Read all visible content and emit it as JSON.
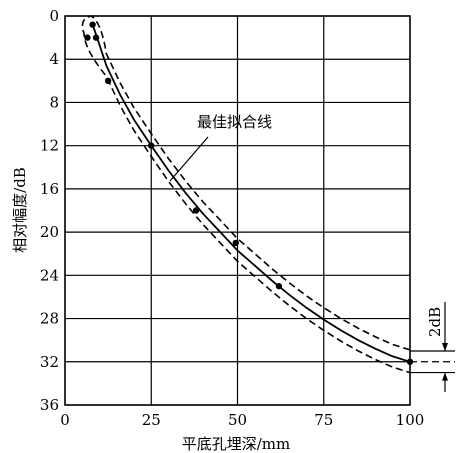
{
  "chart_data": {
    "type": "line",
    "xlabel": "平底孔埋深/mm",
    "ylabel": "相对幅度/dB",
    "xlim": [
      0,
      100
    ],
    "ylim": [
      0,
      36
    ],
    "y_inverted": true,
    "grid": true,
    "x_ticks": [
      "0",
      "25",
      "50",
      "75",
      "100"
    ],
    "y_ticks": [
      "0",
      "4",
      "8",
      "12",
      "16",
      "20",
      "24",
      "28",
      "32",
      "36"
    ],
    "x_tick_values": [
      0,
      25,
      50,
      75,
      100
    ],
    "y_tick_values": [
      0,
      4,
      8,
      12,
      16,
      20,
      24,
      28,
      32,
      36
    ],
    "points": [
      {
        "x": 6.5,
        "y": 2.0
      },
      {
        "x": 8,
        "y": 0.8
      },
      {
        "x": 9,
        "y": 2.0
      },
      {
        "x": 12.5,
        "y": 6.0
      },
      {
        "x": 25,
        "y": 12.0
      },
      {
        "x": 38,
        "y": 18.0
      },
      {
        "x": 49.5,
        "y": 21.0
      },
      {
        "x": 62,
        "y": 25.0
      },
      {
        "x": 100,
        "y": 32.0
      }
    ],
    "fit_curve": [
      [
        8,
        0.8
      ],
      [
        9,
        1.7
      ],
      [
        12,
        4.6
      ],
      [
        16,
        7.3
      ],
      [
        20,
        9.6
      ],
      [
        25,
        12.0
      ],
      [
        30,
        14.3
      ],
      [
        35,
        16.4
      ],
      [
        40,
        18.3
      ],
      [
        45,
        20.0
      ],
      [
        50,
        21.7
      ],
      [
        55,
        23.1
      ],
      [
        60,
        24.5
      ],
      [
        65,
        25.8
      ],
      [
        70,
        27.0
      ],
      [
        75,
        28.1
      ],
      [
        80,
        29.1
      ],
      [
        85,
        30.0
      ],
      [
        90,
        30.8
      ],
      [
        95,
        31.5
      ],
      [
        100,
        32.0
      ]
    ],
    "band_offset_db": 1.0,
    "band_apex": [
      7.5,
      0.0
    ],
    "annotation": "最佳拟合线",
    "tolerance_label": "2dB"
  }
}
